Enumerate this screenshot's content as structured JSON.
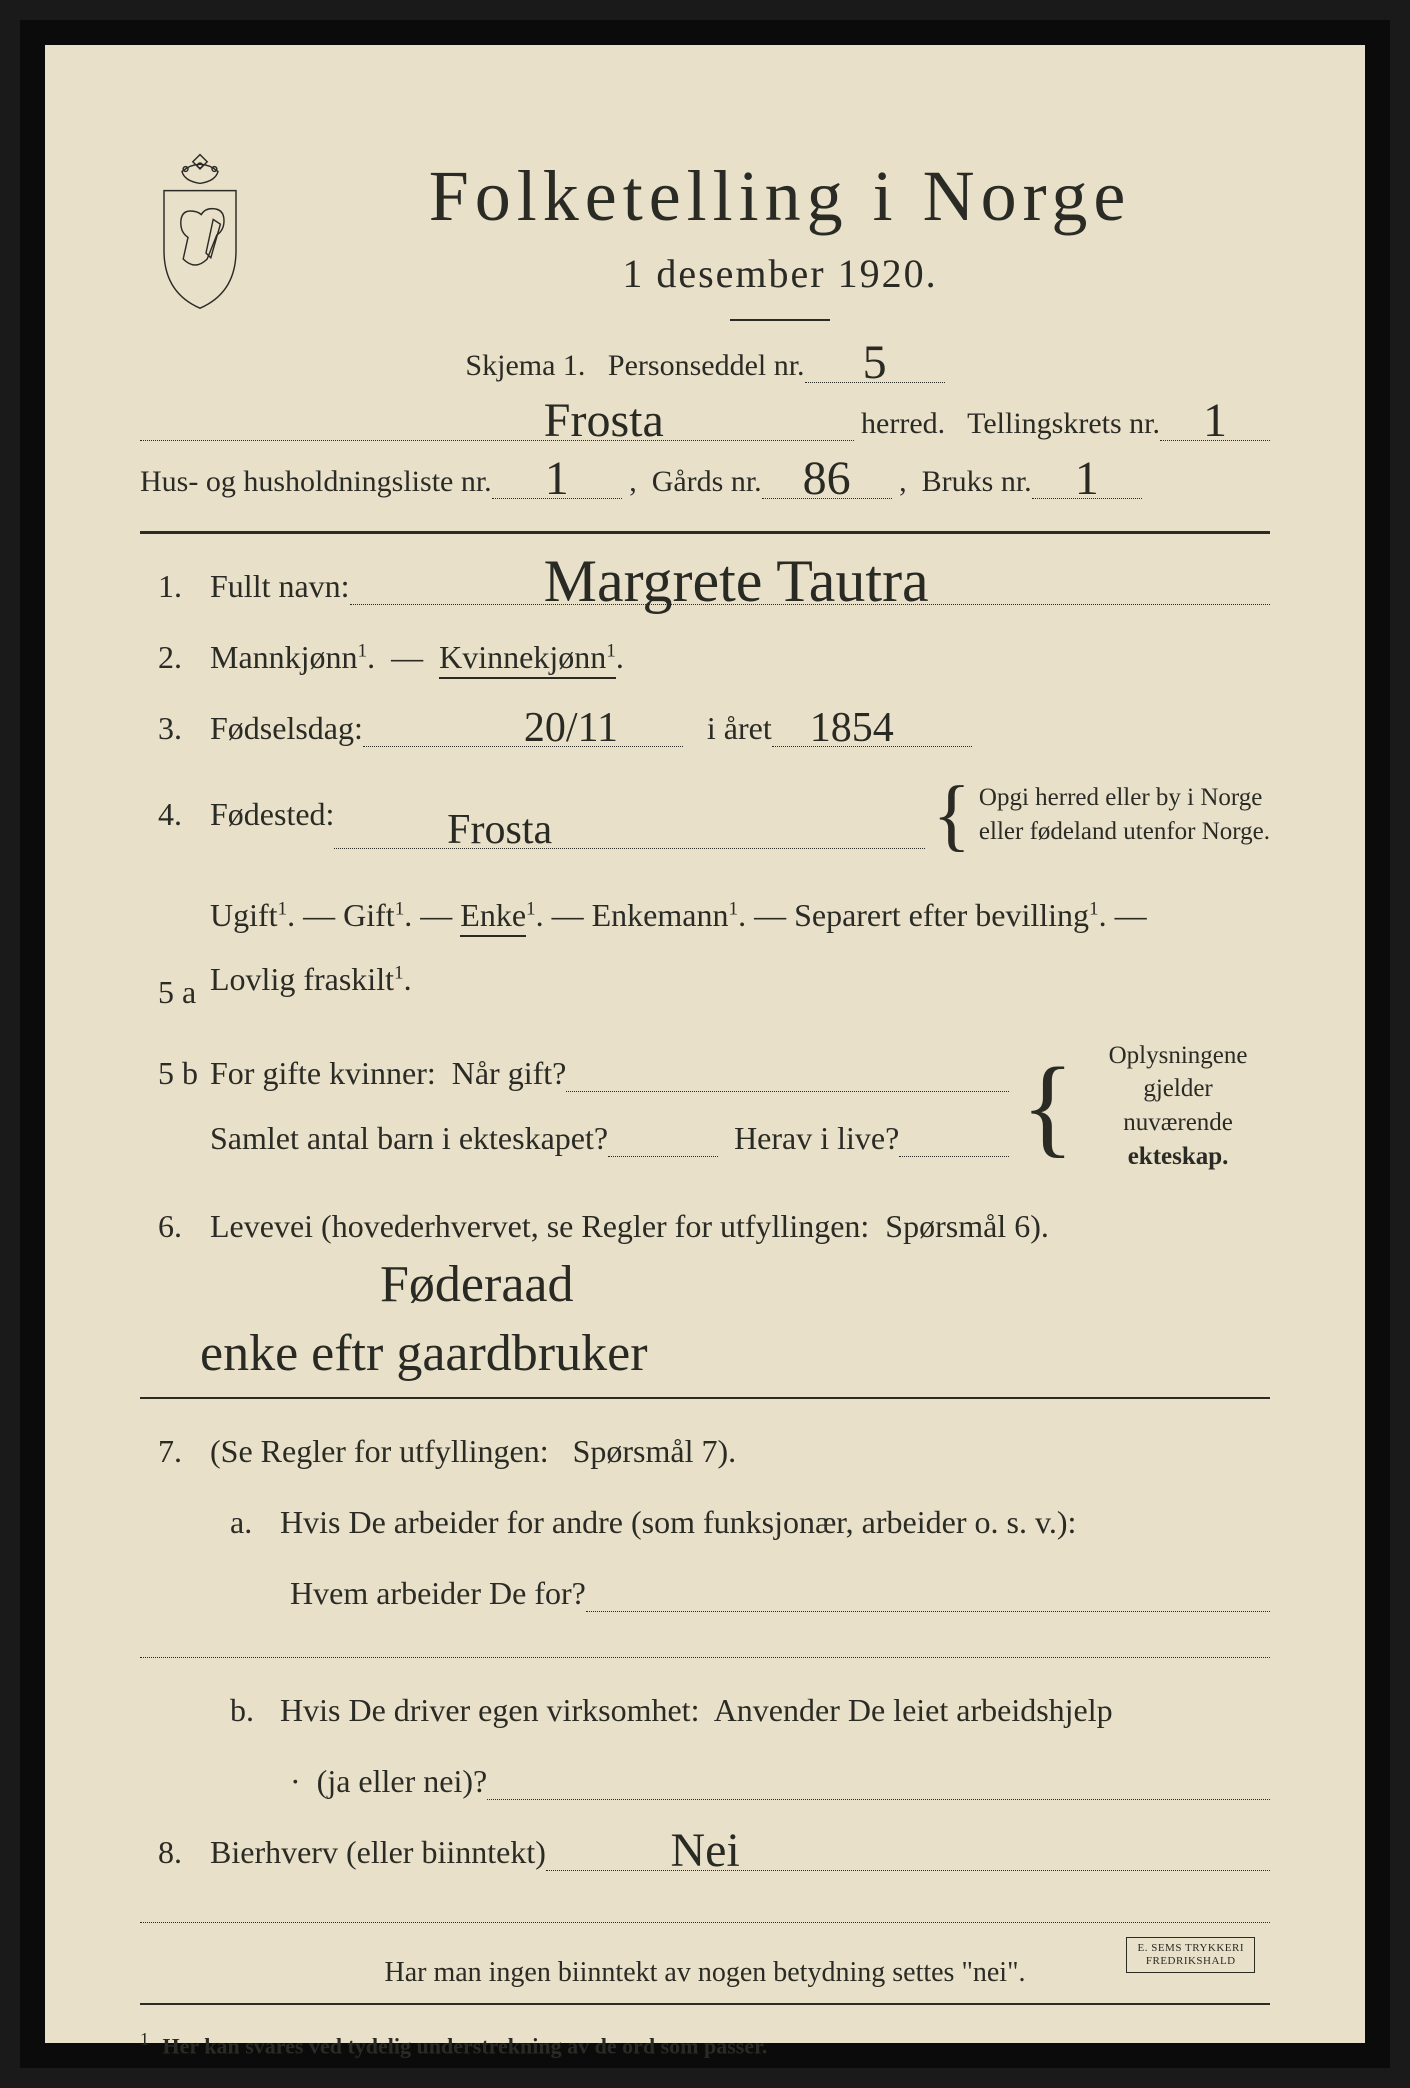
{
  "colors": {
    "paper": "#e8e0c8",
    "ink": "#2b2b26",
    "border": "#0b0b0b",
    "handwriting": "#2a2a25"
  },
  "title": "Folketelling  i  Norge",
  "date_line": "1 desember 1920.",
  "skjema_label": "Skjema 1.   Personseddel nr.",
  "personseddel_nr": "5",
  "herred_value": "Frosta",
  "herred_label": " herred.   Tellingskrets nr.",
  "tellingskrets_nr": "1",
  "hus_label_a": "Hus- og husholdningsliste nr.",
  "hus_nr": "1",
  "gards_label": " ,  Gårds nr.",
  "gards_nr": "86",
  "bruks_label": " ,  Bruks nr.",
  "bruks_nr": "1",
  "q1": {
    "num": "1.",
    "label": "Fullt navn:",
    "value": "Margrete Tautra"
  },
  "q2": {
    "num": "2.",
    "label_a": "Mannkjønn",
    "label_b": "Kvinnekjønn",
    "sup": "1"
  },
  "q3": {
    "num": "3.",
    "label": "Fødselsdag:",
    "day": "20/11",
    "year_label": "   i året",
    "year": "1854"
  },
  "q4": {
    "num": "4.",
    "label": "Fødested:",
    "value": "Frosta",
    "note_a": "Opgi herred eller by i Norge",
    "note_b": "eller fødeland utenfor Norge."
  },
  "q5a": {
    "num": "5 a",
    "opts": [
      "Ugift",
      "Gift",
      "Enke",
      "Enkemann",
      "Separert efter bevilling",
      "Lovlig fraskilt"
    ],
    "sup": "1",
    "selected_index": 2
  },
  "q5b": {
    "num": "5 b",
    "line1_a": "For gifte kvinner:  Når gift?",
    "line2_a": "Samlet antal barn i ekteskapet?",
    "line2_b": "  Herav i live?",
    "note_a": "Oplysningene",
    "note_b": "gjelder nuværende",
    "note_c": "ekteskap."
  },
  "q6": {
    "num": "6.",
    "label": "Levevei (hovederhvervet, se Regler for utfyllingen:  Spørsmål 6).",
    "value_a": "Føderaad",
    "value_b": "enke eftr gaardbruker"
  },
  "q7": {
    "num": "7.",
    "label": "(Se Regler for utfyllingen:   Spørsmål 7).",
    "a_label": "a.",
    "a_text1": "Hvis De arbeider for andre (som funksjonær, arbeider o. s. v.):",
    "a_text2": "Hvem arbeider De for?",
    "b_label": "b.",
    "b_text1": "Hvis De driver egen virksomhet:  Anvender De leiet arbeidshjelp",
    "b_text2": "(ja eller nei)?"
  },
  "q8": {
    "num": "8.",
    "label": "Bierhverv (eller biinntekt)",
    "value": "Nei"
  },
  "bottom_note": "Har man ingen biinntekt av nogen betydning settes \"nei\".",
  "footnote": "Her kan svares ved tydelig understrekning av de ord som passer.",
  "footnote_num": "1",
  "stamp_a": "E. SEMS TRYKKERI",
  "stamp_b": "FREDRIKSHALD"
}
